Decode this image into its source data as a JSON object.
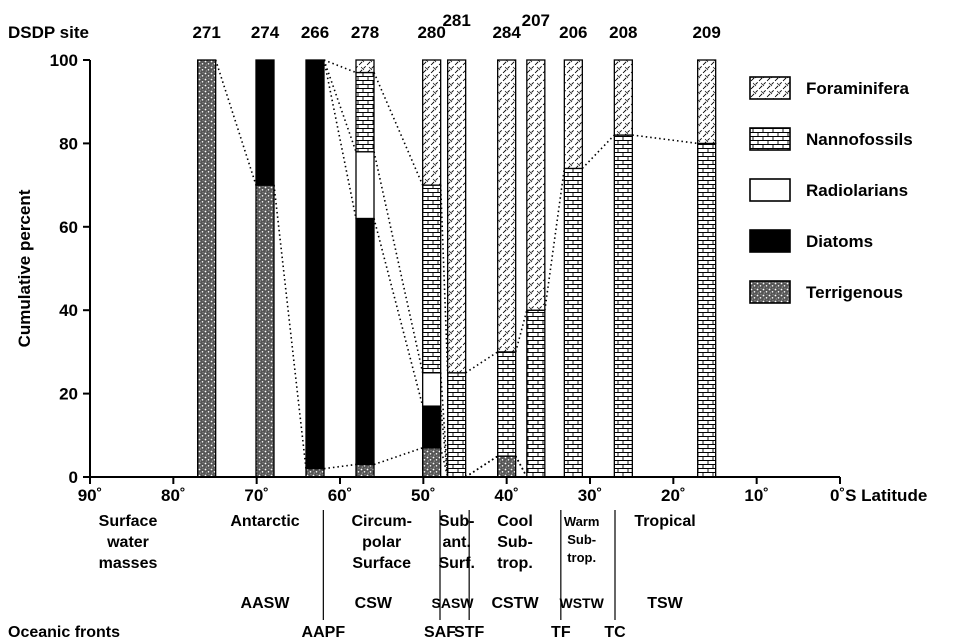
{
  "chart_data": {
    "type": "bar",
    "subtype": "stacked-100-percent",
    "ylabel": "Cumulative percent",
    "xlabel": "S Latitude",
    "site_header": "DSDP site",
    "xlim": [
      90,
      0
    ],
    "ylim": [
      0,
      100
    ],
    "x_ticks": [
      {
        "value": 90,
        "label": "90˚"
      },
      {
        "value": 80,
        "label": "80˚"
      },
      {
        "value": 70,
        "label": "70˚"
      },
      {
        "value": 60,
        "label": "60˚"
      },
      {
        "value": 50,
        "label": "50˚"
      },
      {
        "value": 40,
        "label": "40˚"
      },
      {
        "value": 30,
        "label": "30˚"
      },
      {
        "value": 20,
        "label": "20˚"
      },
      {
        "value": 10,
        "label": "10˚"
      },
      {
        "value": 0,
        "label": "0˚S Latitude"
      }
    ],
    "y_ticks": [
      {
        "value": 0,
        "label": "0"
      },
      {
        "value": 20,
        "label": "20"
      },
      {
        "value": 40,
        "label": "40"
      },
      {
        "value": 60,
        "label": "60"
      },
      {
        "value": 80,
        "label": "80"
      },
      {
        "value": 100,
        "label": "100"
      }
    ],
    "legend": [
      {
        "key": "foraminifera",
        "label": "Foraminifera"
      },
      {
        "key": "nannofossils",
        "label": "Nannofossils"
      },
      {
        "key": "radiolarians",
        "label": "Radiolarians"
      },
      {
        "key": "diatoms",
        "label": "Diatoms"
      },
      {
        "key": "terrigenous",
        "label": "Terrigenous"
      }
    ],
    "legend_position": "right",
    "component_order": [
      "terrigenous",
      "diatoms",
      "radiolarians",
      "nannofossils",
      "foraminifera"
    ],
    "sites": [
      {
        "site": "271",
        "lat": 76,
        "terrigenous": 100,
        "diatoms": 0,
        "radiolarians": 0,
        "nannofossils": 0,
        "foraminifera": 0
      },
      {
        "site": "274",
        "lat": 69,
        "terrigenous": 70,
        "diatoms": 30,
        "radiolarians": 0,
        "nannofossils": 0,
        "foraminifera": 0
      },
      {
        "site": "266",
        "lat": 63,
        "terrigenous": 2,
        "diatoms": 98,
        "radiolarians": 0,
        "nannofossils": 0,
        "foraminifera": 0
      },
      {
        "site": "278",
        "lat": 57,
        "terrigenous": 3,
        "diatoms": 59,
        "radiolarians": 16,
        "nannofossils": 19,
        "foraminifera": 3
      },
      {
        "site": "280",
        "lat": 49,
        "terrigenous": 7,
        "diatoms": 10,
        "radiolarians": 8,
        "nannofossils": 45,
        "foraminifera": 30
      },
      {
        "site": "281",
        "lat": 46,
        "terrigenous": 0,
        "diatoms": 0,
        "radiolarians": 0,
        "nannofossils": 25,
        "foraminifera": 75
      },
      {
        "site": "284",
        "lat": 40,
        "terrigenous": 5,
        "diatoms": 0,
        "radiolarians": 0,
        "nannofossils": 25,
        "foraminifera": 70
      },
      {
        "site": "207",
        "lat": 36.5,
        "terrigenous": 0,
        "diatoms": 0,
        "radiolarians": 0,
        "nannofossils": 40,
        "foraminifera": 60
      },
      {
        "site": "206",
        "lat": 32,
        "terrigenous": 0,
        "diatoms": 0,
        "radiolarians": 0,
        "nannofossils": 74,
        "foraminifera": 26
      },
      {
        "site": "208",
        "lat": 26,
        "terrigenous": 0,
        "diatoms": 0,
        "radiolarians": 0,
        "nannofossils": 82,
        "foraminifera": 18
      },
      {
        "site": "209",
        "lat": 16,
        "terrigenous": 0,
        "diatoms": 0,
        "radiolarians": 0,
        "nannofossils": 80,
        "foraminifera": 20
      }
    ],
    "connector_components": [
      "terrigenous",
      "diatoms",
      "radiolarians",
      "nannofossils"
    ],
    "water_mass_header": "Surface water masses",
    "water_masses": [
      {
        "label_lines": [
          "Antarctic"
        ],
        "center": 69
      },
      {
        "label_lines": [
          "Circum-",
          "polar",
          "Surface"
        ],
        "center": 55
      },
      {
        "label_lines": [
          "Sub-",
          "ant.",
          "Surf."
        ],
        "center": 46
      },
      {
        "label_lines": [
          "Cool",
          "Sub-",
          "trop."
        ],
        "center": 39
      },
      {
        "label_lines": [
          "Warm",
          "Sub-",
          "trop."
        ],
        "center": 31
      },
      {
        "label_lines": [
          "Tropical"
        ],
        "center": 21
      }
    ],
    "water_mass_abbrevs": [
      {
        "label": "AASW",
        "center": 69
      },
      {
        "label": "CSW",
        "center": 56
      },
      {
        "label": "SASW",
        "center": 46.5
      },
      {
        "label": "CSTW",
        "center": 39
      },
      {
        "label": "WSTW",
        "center": 31
      },
      {
        "label": "TSW",
        "center": 21
      }
    ],
    "fronts_header": "Oceanic fronts",
    "fronts": [
      {
        "label": "AAPF",
        "lat": 62
      },
      {
        "label": "SAF",
        "lat": 48
      },
      {
        "label": "STF",
        "lat": 44.5
      },
      {
        "label": "TF",
        "lat": 33.5
      },
      {
        "label": "TC",
        "lat": 27
      }
    ]
  }
}
